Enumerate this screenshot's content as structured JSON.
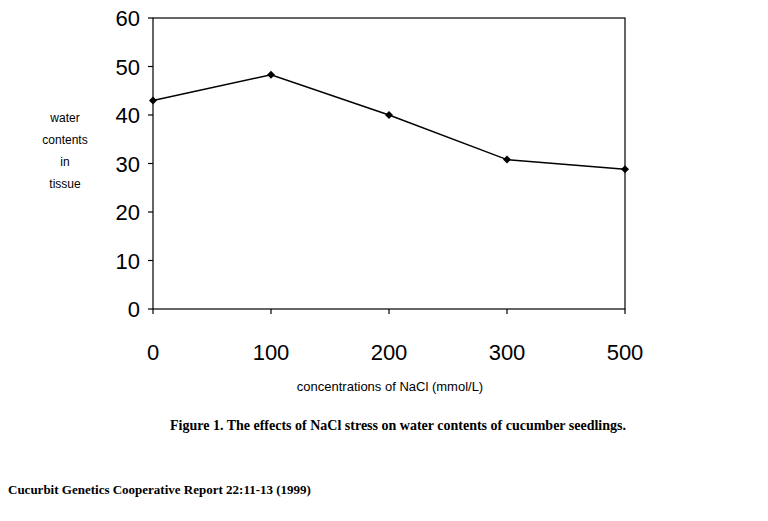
{
  "chart_data": {
    "type": "line",
    "title": "Figure 1. The effects of NaCl stress on water contents of cucumber seedlings.",
    "x_label": "concentrations of NaCl (mmol/L)",
    "y_label": "water contents in tissue",
    "annotations": [
      "Cucurbit Genetics Cooperative Report 22:11-13 (1999)"
    ],
    "categories": [
      "0",
      "100",
      "200",
      "300",
      "500"
    ],
    "values": [
      43,
      48.3,
      40,
      30.8,
      28.8
    ],
    "color": "#000000",
    "marker": "diamond",
    "line_style": "solid",
    "ylim": [
      0,
      60
    ],
    "yticks": [
      0,
      10,
      20,
      30,
      40,
      50,
      60
    ],
    "grid": false
  }
}
